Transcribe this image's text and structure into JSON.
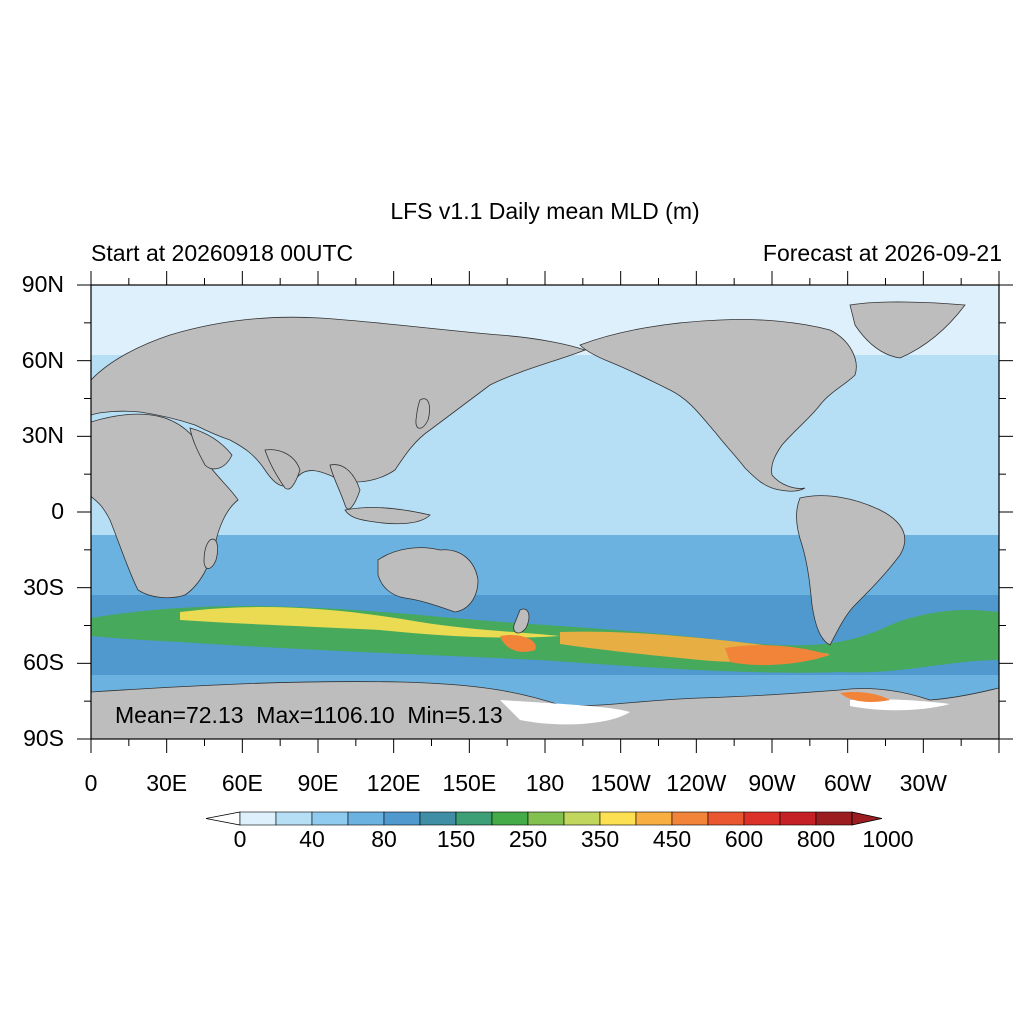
{
  "title": "LFS v1.1 Daily mean MLD (m)",
  "subtitle_left": "Start at 20260918 00UTC",
  "subtitle_right": "Forecast at 2026-09-21",
  "stats": "Mean=72.13  Max=1106.10  Min=5.13",
  "lat_labels": [
    "90N",
    "60N",
    "30N",
    "0",
    "30S",
    "60S",
    "90S"
  ],
  "lon_labels": [
    "0",
    "30E",
    "60E",
    "90E",
    "120E",
    "150E",
    "180",
    "150W",
    "120W",
    "90W",
    "60W",
    "30W"
  ],
  "colorbar": {
    "tick_labels": [
      "0",
      "40",
      "80",
      "150",
      "250",
      "350",
      "450",
      "600",
      "800",
      "1000"
    ],
    "colors": [
      "#ddf0fb",
      "#b6def5",
      "#8fcbee",
      "#6bb2e0",
      "#4f99cf",
      "#3f8ea6",
      "#3e9e76",
      "#44ab48",
      "#82c050",
      "#c0d65c",
      "#fce052",
      "#f8ae41",
      "#f2843a",
      "#e9562f",
      "#dc3128",
      "#c52025",
      "#9b1d20"
    ],
    "under_color": "#ffffff",
    "over_color": "#9b1d20"
  },
  "colors": {
    "land": "#bdbdbd",
    "polar_ocean": "#ddf0fb",
    "mid_ocean": "#b6def5",
    "southern_ocean": "#4f99cf",
    "ring_low": "#44ab48",
    "ring_high": "#fce052",
    "ring_peak": "#f2843a"
  }
}
